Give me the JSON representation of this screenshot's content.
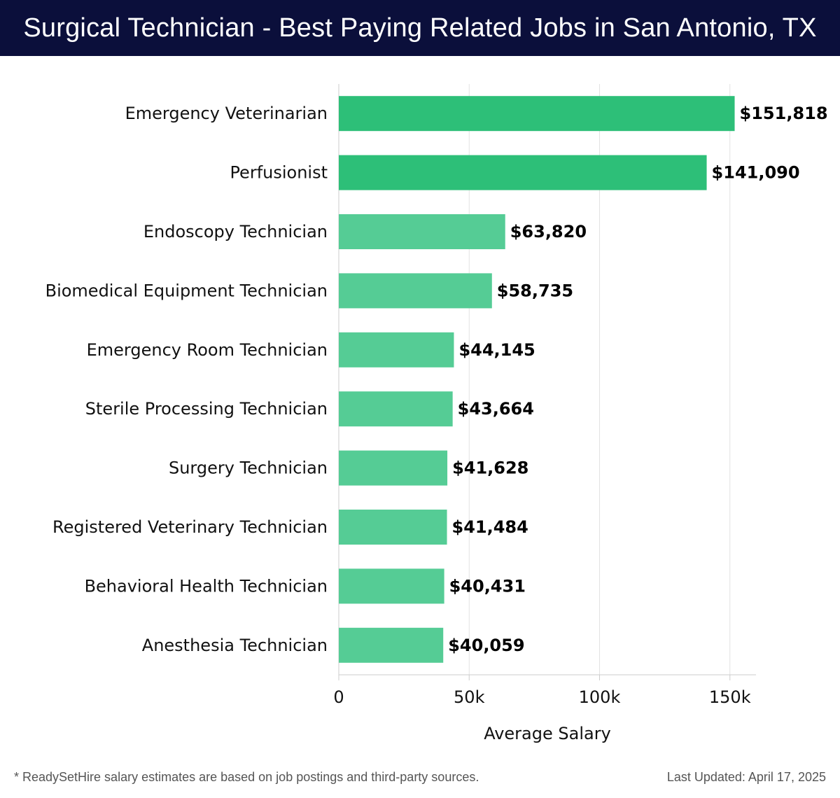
{
  "header": {
    "title": "Surgical Technician - Best Paying Related Jobs in San Antonio, TX"
  },
  "footer": {
    "note": "* ReadySetHire salary estimates are based on job postings and third-party sources.",
    "updated": "Last Updated: April 17, 2025"
  },
  "colors": {
    "title_bg": "#0b0f3b",
    "bar_top": "#2dbf78",
    "bar_other": "#55cc95",
    "grid": "#e2e2e2",
    "axis": "#cccccc"
  },
  "chart_data": {
    "type": "bar",
    "orientation": "horizontal",
    "categories": [
      "Emergency Veterinarian",
      "Perfusionist",
      "Endoscopy Technician",
      "Biomedical Equipment Technician",
      "Emergency Room Technician",
      "Sterile Processing Technician",
      "Surgery Technician",
      "Registered Veterinary Technician",
      "Behavioral Health Technician",
      "Anesthesia Technician"
    ],
    "values": [
      151818,
      141090,
      63820,
      58735,
      44145,
      43664,
      41628,
      41484,
      40431,
      40059
    ],
    "value_labels": [
      "$151,818",
      "$141,090",
      "$63,820",
      "$58,735",
      "$44,145",
      "$43,664",
      "$41,628",
      "$41,484",
      "$40,431",
      "$40,059"
    ],
    "highlight_count": 2,
    "xlabel": "Average Salary",
    "ylabel": "",
    "xlim": [
      0,
      160000
    ],
    "xticks": [
      0,
      50000,
      100000,
      150000
    ],
    "xtick_labels": [
      "0",
      "50k",
      "100k",
      "150k"
    ],
    "grid": true
  }
}
